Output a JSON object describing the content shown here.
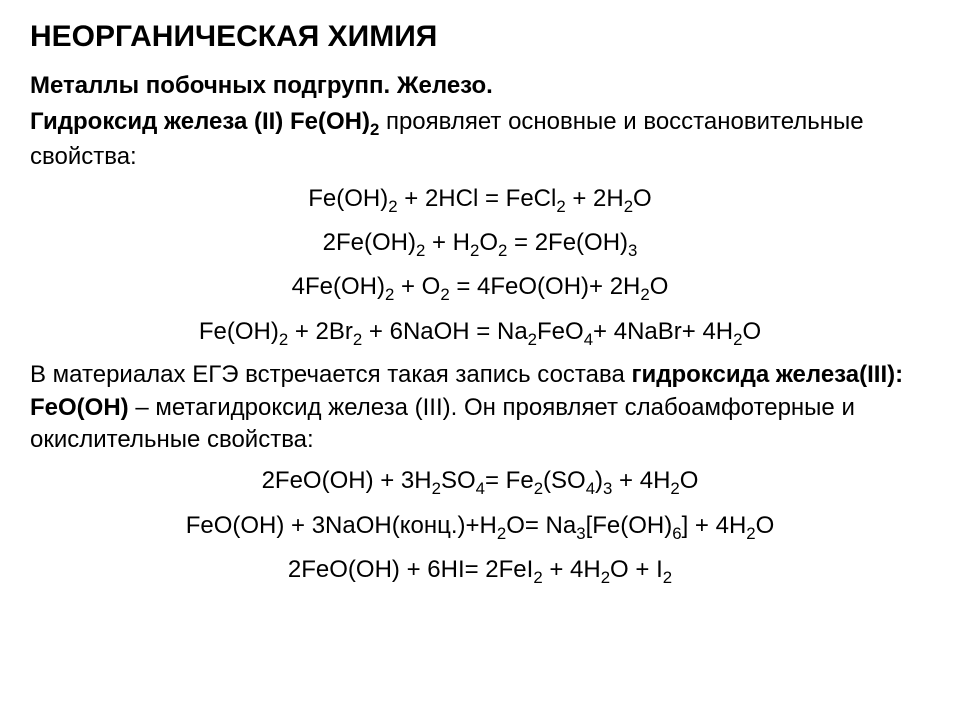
{
  "title": "НЕОРГАНИЧЕСКАЯ ХИМИЯ",
  "subtitle": "Металлы побочных подгрупп. Железо.",
  "intro1_bold": "Гидроксид железа (II) Fe(OH)",
  "intro1_sub": "2",
  "intro1_rest": " проявляет основные и восстановительные свойства:",
  "eq1": {
    "a": "Fe(OH)",
    "b": "2",
    "c": " + 2HCl = FeCl",
    "d": "2",
    "e": " + 2H",
    "f": "2",
    "g": "O"
  },
  "eq2": {
    "a": "2Fe(OH)",
    "b": "2",
    "c": " + H",
    "d": "2",
    "e": "O",
    "f": "2",
    "g": " = 2Fe(OH)",
    "h": "3"
  },
  "eq3": {
    "a": "4Fe(OH)",
    "b": "2",
    "c": " + O",
    "d": "2",
    "e": " = 4FeO(OH)+ 2H",
    "f": "2",
    "g": "O"
  },
  "eq4": {
    "a": "Fe(OH)",
    "b": "2",
    "c": " + 2Br",
    "d": "2",
    "e": " + 6NaOH = Na",
    "f": "2",
    "g": "FeO",
    "h": "4",
    "i": "+ 4NaBr+ 4H",
    "j": "2",
    "k": "O"
  },
  "para2_a": "В материалах ЕГЭ встречается такая запись состава ",
  "para2_bold": "гидроксида железа(III): FeO(OH)",
  "para2_b": " – метагидроксид железа (III). Он проявляет слабоамфотерные и окислительные свойства:",
  "eq5": {
    "a": "2FeO(OH) + 3H",
    "b": "2",
    "c": "SO",
    "d": "4",
    "e": "= Fe",
    "f": "2",
    "g": "(SO",
    "h": "4",
    "i": ")",
    "j": "3",
    "k": " + 4H",
    "l": "2",
    "m": "O"
  },
  "eq6": {
    "a": "FeO(OH) +  3NaOH(конц.)+H",
    "b": "2",
    "c": "O= Na",
    "d": "3",
    "e": "[Fe(OH)",
    "f": "6",
    "g": "] + 4H",
    "h": "2",
    "i": "O"
  },
  "eq7": {
    "a": "2FeO(OH) + 6HI= 2FeI",
    "b": "2",
    "c": " + 4H",
    "d": "2",
    "e": "O + I",
    "f": "2"
  }
}
